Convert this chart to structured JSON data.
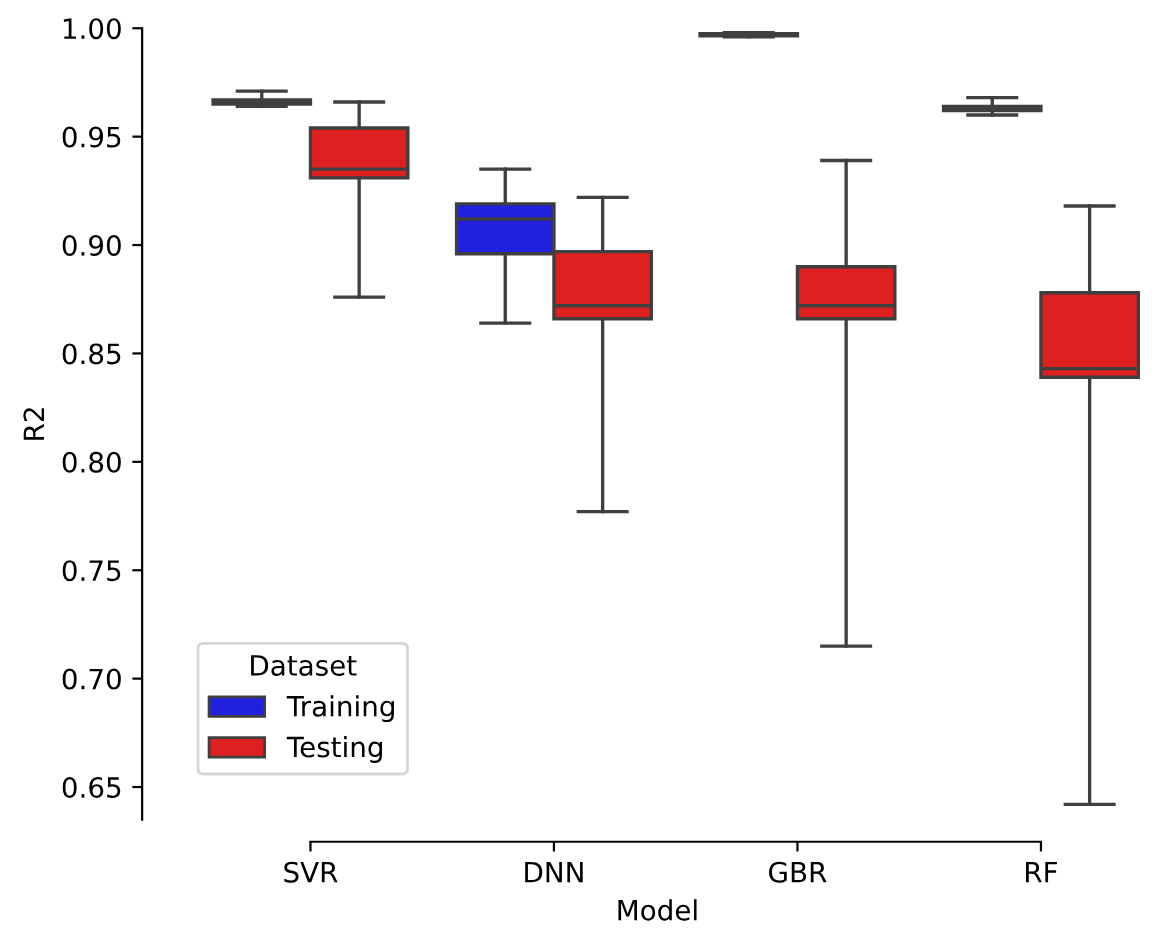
{
  "chart_data": {
    "type": "box",
    "xlabel": "Model",
    "ylabel": "R2",
    "legend_title": "Dataset",
    "legend": "bottom left",
    "grid": false,
    "categories": [
      "SVR",
      "DNN",
      "GBR",
      "RF"
    ],
    "ylim": [
      0.635,
      1.0
    ],
    "yticks": [
      {
        "value": 0.65,
        "label": "0.65"
      },
      {
        "value": 0.7,
        "label": "0.70"
      },
      {
        "value": 0.75,
        "label": "0.75"
      },
      {
        "value": 0.8,
        "label": "0.80"
      },
      {
        "value": 0.85,
        "label": "0.85"
      },
      {
        "value": 0.9,
        "label": "0.90"
      },
      {
        "value": 0.95,
        "label": "0.95"
      },
      {
        "value": 1.0,
        "label": "1.00"
      }
    ],
    "series": [
      {
        "name": "Training",
        "color": "#2020df",
        "boxes": [
          {
            "low": 0.964,
            "q1": 0.965,
            "median": 0.966,
            "q3": 0.967,
            "high": 0.971
          },
          {
            "low": 0.864,
            "q1": 0.896,
            "median": 0.912,
            "q3": 0.919,
            "high": 0.935
          },
          {
            "low": 0.996,
            "q1": 0.9965,
            "median": 0.997,
            "q3": 0.9975,
            "high": 0.998
          },
          {
            "low": 0.96,
            "q1": 0.962,
            "median": 0.963,
            "q3": 0.964,
            "high": 0.968
          }
        ]
      },
      {
        "name": "Testing",
        "color": "#df2020",
        "boxes": [
          {
            "low": 0.876,
            "q1": 0.931,
            "median": 0.935,
            "q3": 0.954,
            "high": 0.966
          },
          {
            "low": 0.777,
            "q1": 0.866,
            "median": 0.872,
            "q3": 0.897,
            "high": 0.922
          },
          {
            "low": 0.715,
            "q1": 0.866,
            "median": 0.872,
            "q3": 0.89,
            "high": 0.939
          },
          {
            "low": 0.642,
            "q1": 0.839,
            "median": 0.843,
            "q3": 0.878,
            "high": 0.918
          }
        ]
      }
    ]
  }
}
